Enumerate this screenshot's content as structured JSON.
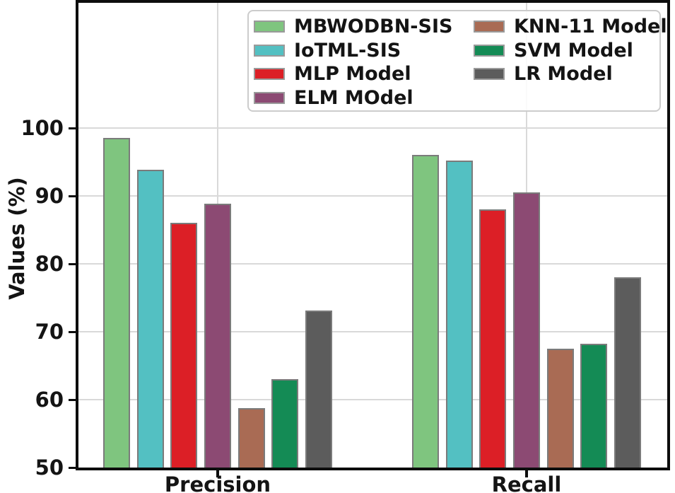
{
  "chart_data": {
    "type": "bar",
    "title": "",
    "xlabel": "",
    "ylabel": "Values (%)",
    "categories": [
      "Precision",
      "Recall"
    ],
    "series": [
      {
        "name": "MBWODBN-SIS",
        "color": "#7fc57f",
        "values": [
          98.5,
          96.0
        ]
      },
      {
        "name": "IoTML-SIS",
        "color": "#53c0c2",
        "values": [
          93.9,
          95.2
        ]
      },
      {
        "name": "MLP Model",
        "color": "#dc1f26",
        "values": [
          86.0,
          88.0
        ]
      },
      {
        "name": "ELM MOdel",
        "color": "#8c4a73",
        "values": [
          88.9,
          90.5
        ]
      },
      {
        "name": "KNN-11 Model",
        "color": "#a96b54",
        "values": [
          58.8,
          67.5
        ]
      },
      {
        "name": "SVM Model",
        "color": "#148b55",
        "values": [
          63.0,
          68.2
        ]
      },
      {
        "name": "LR Model",
        "color": "#5c5c5c",
        "values": [
          73.1,
          78.0
        ]
      }
    ],
    "y_ticks": [
      50,
      60,
      70,
      80,
      90,
      100
    ],
    "ylim": [
      50,
      118.4
    ],
    "grid": true,
    "legend_position": "upper center inside plot, 2 columns (4 left / 3 right)",
    "legend_columns": [
      [
        0,
        1,
        2,
        3
      ],
      [
        4,
        5,
        6
      ]
    ],
    "style": {
      "grid_color": "#d9d9d9",
      "spine_color": "#0d0d0d",
      "bar_edge_color": "#7b7b7b",
      "legend_border_color": "#cccccc",
      "text_color": "#141414"
    }
  }
}
